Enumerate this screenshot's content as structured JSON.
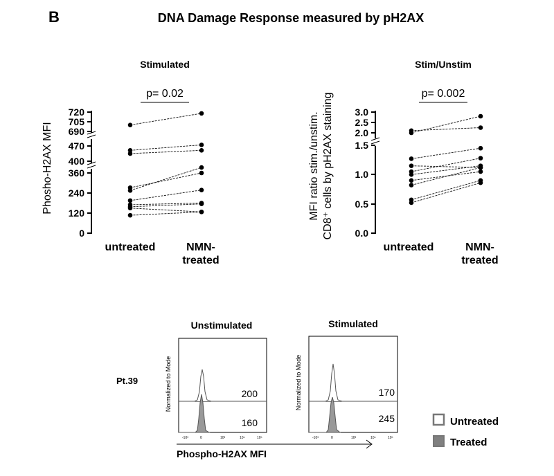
{
  "panel_letter": "B",
  "title": "DNA Damage Response measured by pH2AX",
  "histogram_section": {
    "patient_label": "Pt.39",
    "x_axis_label": "Phospho-H2AX MFI",
    "y_axis_label": "Normalized to Mode",
    "panels": [
      {
        "title": "Unstimulated",
        "untreated_value": "200",
        "treated_value": "160"
      },
      {
        "title": "Stimulated",
        "untreated_value": "170",
        "treated_value": "245"
      }
    ],
    "legend": [
      {
        "label": "Untreated",
        "color": "#ffffff"
      },
      {
        "label": "Treated",
        "color": "#808080"
      }
    ],
    "tick_labels": [
      "-10³",
      "0",
      "10³",
      "10⁴",
      "10⁵"
    ]
  },
  "chart_data": [
    {
      "type": "scatter",
      "title": "Stimulated",
      "ylabel": "Phosho-H2AX MFI",
      "categories": [
        "untreated",
        "NMN-\ntreated"
      ],
      "significance": "p= 0.02",
      "broken_y_axis": true,
      "y_segments": [
        {
          "range": [
            0,
            360
          ],
          "ticks": [
            "0",
            "120",
            "240",
            "360"
          ]
        },
        {
          "range": [
            400,
            470
          ],
          "ticks": [
            "400",
            "470"
          ]
        },
        {
          "range": [
            690,
            720
          ],
          "ticks": [
            "690",
            "705",
            "720"
          ]
        }
      ],
      "pairs": [
        [
          700,
          718
        ],
        [
          450,
          475
        ],
        [
          435,
          450
        ],
        [
          272,
          360
        ],
        [
          255,
          393
        ],
        [
          195,
          258
        ],
        [
          170,
          180
        ],
        [
          158,
          175
        ],
        [
          150,
          127
        ],
        [
          107,
          127
        ]
      ]
    },
    {
      "type": "scatter",
      "title": "Stim/Unstim",
      "ylabel": "MFI ratio stim./unstim.\nCD8⁺ cells by pH2AX staining",
      "categories": [
        "untreated",
        "NMN-\ntreated"
      ],
      "significance": "p= 0.002",
      "broken_y_axis": true,
      "y_segments": [
        {
          "range": [
            0,
            1.5
          ],
          "ticks": [
            "0.0",
            "0.5",
            "1.0",
            "1.5"
          ]
        },
        {
          "range": [
            2.0,
            3.0
          ],
          "ticks": [
            "2.0",
            "2.5",
            "3.0"
          ]
        }
      ],
      "pairs": [
        [
          2.0,
          2.8
        ],
        [
          1.75,
          2.25
        ],
        [
          1.27,
          1.45
        ],
        [
          1.15,
          1.12
        ],
        [
          1.05,
          1.28
        ],
        [
          1.0,
          1.15
        ],
        [
          0.9,
          1.05
        ],
        [
          0.82,
          1.12
        ],
        [
          0.57,
          0.9
        ],
        [
          0.52,
          0.86
        ]
      ]
    }
  ]
}
